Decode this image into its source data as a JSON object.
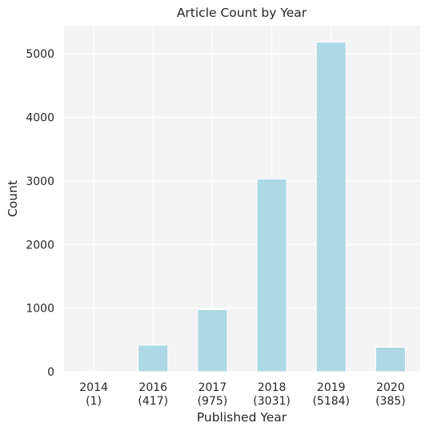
{
  "chart_data": {
    "type": "bar",
    "title": "Article Count by Year",
    "xlabel": "Published Year",
    "ylabel": "Count",
    "categories": [
      "2014",
      "2016",
      "2017",
      "2018",
      "2019",
      "2020"
    ],
    "category_counts": [
      "(1)",
      "(417)",
      "(975)",
      "(3031)",
      "(5184)",
      "(385)"
    ],
    "values": [
      1,
      417,
      975,
      3031,
      5184,
      385
    ],
    "yticks": [
      0,
      1000,
      2000,
      3000,
      4000,
      5000
    ],
    "ylim": [
      0,
      5443
    ],
    "grid": true,
    "bar_color": "#add8e6",
    "plot_background": "#f4f4f4",
    "grid_color": "#ffffff"
  }
}
